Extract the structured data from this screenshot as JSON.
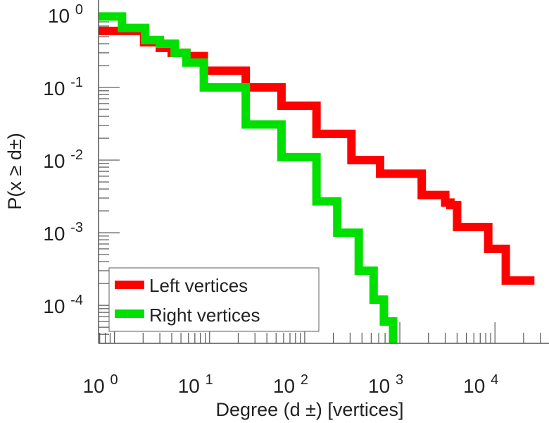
{
  "chart_data": {
    "type": "line",
    "title": "",
    "xlabel": "Degree (d ±) [vertices]",
    "ylabel": "P(x ≥ d±)",
    "xscale": "log",
    "yscale": "log",
    "xlim": [
      0.68,
      37000
    ],
    "ylim": [
      3e-05,
      1.6
    ],
    "xticks": [
      {
        "base": "10",
        "exp": "0",
        "value": 1
      },
      {
        "base": "10",
        "exp": "1",
        "value": 10
      },
      {
        "base": "10",
        "exp": "2",
        "value": 100
      },
      {
        "base": "10",
        "exp": "3",
        "value": 1000
      },
      {
        "base": "10",
        "exp": "4",
        "value": 10000
      }
    ],
    "yticks": [
      {
        "base": "10",
        "exp": "0",
        "value": 1
      },
      {
        "base": "10",
        "exp": "-1",
        "value": 0.1
      },
      {
        "base": "10",
        "exp": "-2",
        "value": 0.01
      },
      {
        "base": "10",
        "exp": "-3",
        "value": 0.001
      },
      {
        "base": "10",
        "exp": "-4",
        "value": 0.0001
      }
    ],
    "legend_position": "bottom-left",
    "series": [
      {
        "name": "Left vertices",
        "color": "#ff0000",
        "points": [
          [
            0.68,
            0.6
          ],
          [
            1.1,
            0.6
          ],
          [
            2.05,
            0.42
          ],
          [
            3,
            0.35
          ],
          [
            4,
            0.3
          ],
          [
            5.7,
            0.27
          ],
          [
            8.7,
            0.17
          ],
          [
            24,
            0.1
          ],
          [
            57,
            0.056
          ],
          [
            133,
            0.023
          ],
          [
            310,
            0.01
          ],
          [
            620,
            0.0065
          ],
          [
            1700,
            0.0033
          ],
          [
            3000,
            0.0026
          ],
          [
            3400,
            0.0024
          ],
          [
            4000,
            0.0012
          ],
          [
            7000,
            0.0012
          ],
          [
            8500,
            0.0006
          ],
          [
            13000,
            0.00022
          ],
          [
            26000,
            0.00022
          ]
        ]
      },
      {
        "name": "Right vertices",
        "color": "#00e000",
        "points": [
          [
            0.68,
            0.95
          ],
          [
            1.1,
            0.95
          ],
          [
            1.2,
            0.66
          ],
          [
            2,
            0.66
          ],
          [
            2.1,
            0.45
          ],
          [
            3,
            0.4
          ],
          [
            4.3,
            0.3
          ],
          [
            5.7,
            0.22
          ],
          [
            8.7,
            0.1
          ],
          [
            24,
            0.031
          ],
          [
            57,
            0.011
          ],
          [
            133,
            0.0027
          ],
          [
            220,
            0.001
          ],
          [
            370,
            0.0003
          ],
          [
            530,
            0.00012
          ],
          [
            680,
            6e-05
          ],
          [
            850,
            3e-05
          ]
        ]
      }
    ]
  }
}
